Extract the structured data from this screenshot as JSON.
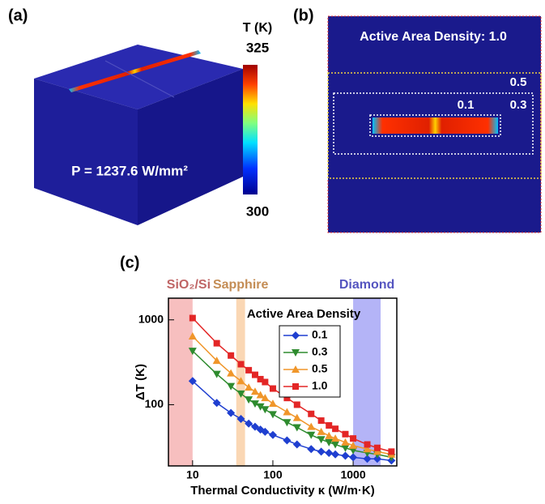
{
  "panel_a": {
    "label": "(a)",
    "power_label": "P = 1237.6 W/mm²",
    "colorbar": {
      "title": "T (K)",
      "lim": [
        300,
        325
      ],
      "ticks": [
        300,
        325
      ]
    }
  },
  "panel_b": {
    "label": "(b)",
    "title": "Active Area Density: 1.0",
    "density_labels": [
      "0.5",
      "0.3",
      "0.1"
    ]
  },
  "chart_data": {
    "type": "line",
    "panel_label": "(c)",
    "x_label": "Thermal Conductivity κ (W/m·K)",
    "y_label": "ΔT (K)",
    "legend_title": "Active Area Density",
    "legend_position": "upper center",
    "log_x": true,
    "log_y": true,
    "xlim": [
      5,
      3500
    ],
    "ylim": [
      19,
      1800
    ],
    "xticks": [
      10,
      100,
      1000
    ],
    "yticks": [
      100,
      1000
    ],
    "bands": [
      {
        "label": "SiO₂/Si",
        "range": [
          5,
          10
        ],
        "color": "#f08080"
      },
      {
        "label": "Sapphire",
        "range": [
          35,
          45
        ],
        "color": "#f5b06a"
      },
      {
        "label": "Diamond",
        "range": [
          1000,
          2200
        ],
        "color": "#6a6af0"
      }
    ],
    "x": [
      10,
      20,
      30,
      40,
      50,
      60,
      70,
      80,
      100,
      150,
      200,
      300,
      400,
      500,
      600,
      800,
      1000,
      1500,
      2000,
      3000
    ],
    "series": [
      {
        "name": "0.1",
        "color": "#1f3fd0",
        "marker": "diamond",
        "values": [
          190,
          105,
          80,
          68,
          60,
          55,
          51,
          48,
          44,
          38,
          34,
          30,
          28,
          27,
          26,
          25,
          24,
          23,
          23,
          22
        ]
      },
      {
        "name": "0.3",
        "color": "#2e8b2e",
        "marker": "triangle-down",
        "values": [
          430,
          230,
          165,
          135,
          115,
          103,
          95,
          88,
          77,
          62,
          54,
          44,
          39,
          36,
          34,
          31,
          29,
          27,
          26,
          24
        ]
      },
      {
        "name": "0.5",
        "color": "#f0962a",
        "marker": "triangle-up",
        "values": [
          640,
          330,
          235,
          190,
          160,
          143,
          130,
          120,
          103,
          82,
          70,
          55,
          48,
          43,
          40,
          36,
          33,
          30,
          28,
          26
        ]
      },
      {
        "name": "1.0",
        "color": "#e32626",
        "marker": "square",
        "values": [
          1050,
          530,
          380,
          300,
          255,
          225,
          200,
          185,
          155,
          120,
          100,
          78,
          65,
          57,
          52,
          45,
          40,
          34,
          31,
          28
        ]
      }
    ]
  }
}
